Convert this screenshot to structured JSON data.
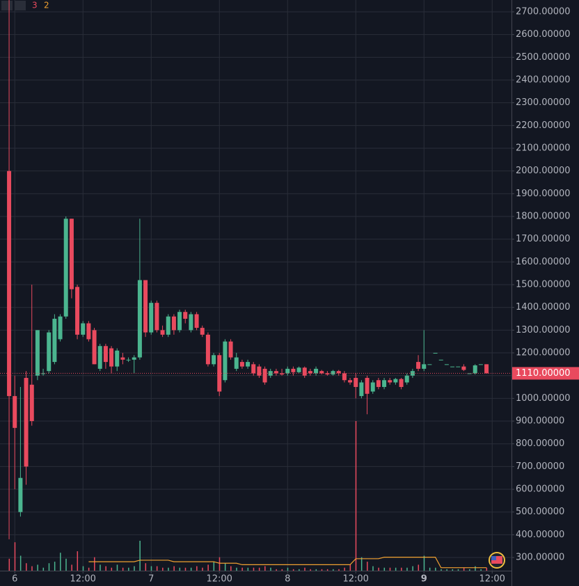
{
  "header": {
    "values": [
      "3",
      "2"
    ]
  },
  "chart_data": {
    "type": "candlestick",
    "up_color": "#4bb58f",
    "down_color": "#e94a5e",
    "xlim": [
      -2.6,
      87.4
    ],
    "xticks": [
      {
        "value": 0,
        "label": "6"
      },
      {
        "value": 12,
        "label": "12:00"
      },
      {
        "value": 24,
        "label": "7"
      },
      {
        "value": 36,
        "label": "12:00"
      },
      {
        "value": 48,
        "label": "8"
      },
      {
        "value": 60,
        "label": "12:00"
      },
      {
        "value": 72,
        "label": "9"
      },
      {
        "value": 84,
        "label": "12:00"
      }
    ],
    "ylim": [
      242,
      2752
    ],
    "yticks": [
      {
        "value": 300,
        "label": "300.00000"
      },
      {
        "value": 400,
        "label": "400.00000"
      },
      {
        "value": 500,
        "label": "500.00000"
      },
      {
        "value": 600,
        "label": "600.00000"
      },
      {
        "value": 700,
        "label": "700.00000"
      },
      {
        "value": 800,
        "label": "800.00000"
      },
      {
        "value": 900,
        "label": "900.00000"
      },
      {
        "value": 1000,
        "label": "1000.00000"
      },
      {
        "value": 1100,
        "label": "1100.00000"
      },
      {
        "value": 1200,
        "label": "1200.00000"
      },
      {
        "value": 1300,
        "label": "1300.00000"
      },
      {
        "value": 1400,
        "label": "1400.00000"
      },
      {
        "value": 1500,
        "label": "1500.00000"
      },
      {
        "value": 1600,
        "label": "1600.00000"
      },
      {
        "value": 1700,
        "label": "1700.00000"
      },
      {
        "value": 1800,
        "label": "1800.00000"
      },
      {
        "value": 1900,
        "label": "1900.00000"
      },
      {
        "value": 2000,
        "label": "2000.00000"
      },
      {
        "value": 2100,
        "label": "2100.00000"
      },
      {
        "value": 2200,
        "label": "2200.00000"
      },
      {
        "value": 2300,
        "label": "2300.00000"
      },
      {
        "value": 2400,
        "label": "2400.00000"
      },
      {
        "value": 2500,
        "label": "2500.00000"
      },
      {
        "value": 2600,
        "label": "2600.00000"
      },
      {
        "value": 2700,
        "label": "2700.00000"
      }
    ],
    "last_price": {
      "value": 1110,
      "label": "1110.00000"
    },
    "grid": true,
    "x": [
      -1,
      0,
      1,
      2,
      3,
      4,
      5,
      6,
      7,
      8,
      9,
      10,
      11,
      12,
      13,
      14,
      15,
      16,
      17,
      18,
      19,
      20,
      21,
      22,
      23,
      24,
      25,
      26,
      27,
      28,
      29,
      30,
      31,
      32,
      33,
      34,
      35,
      36,
      37,
      38,
      39,
      40,
      41,
      42,
      43,
      44,
      45,
      46,
      47,
      48,
      49,
      50,
      51,
      52,
      53,
      54,
      55,
      56,
      57,
      58,
      59,
      60,
      61,
      62,
      63,
      64,
      65,
      66,
      67,
      68,
      69,
      70,
      71,
      72,
      73,
      74,
      75,
      76,
      77,
      78,
      79,
      80,
      81,
      82,
      83
    ],
    "open": [
      2000,
      1010,
      500,
      1090,
      1060,
      1100,
      1110,
      1120,
      1160,
      1260,
      1360,
      1790,
      1490,
      1280,
      1330,
      1300,
      1130,
      1230,
      1220,
      1140,
      1180,
      1170,
      1170,
      1180,
      1520,
      1290,
      1420,
      1300,
      1280,
      1360,
      1300,
      1380,
      1300,
      1370,
      1310,
      1280,
      1150,
      1190,
      1080,
      1250,
      1130,
      1160,
      1140,
      1150,
      1140,
      1130,
      1100,
      1120,
      1110,
      1110,
      1130,
      1115,
      1135,
      1120,
      1110,
      1120,
      1110,
      1105,
      1120,
      1110,
      1080,
      1090,
      1010,
      1090,
      1030,
      1080,
      1050,
      1080,
      1070,
      1085,
      1070,
      1100,
      1160,
      1130,
      1150,
      1200,
      1170,
      1150,
      1140,
      1140,
      1140,
      1110,
      1110,
      1150,
      1150
    ],
    "high": [
      2760,
      1100,
      1050,
      1120,
      1500,
      1300,
      1130,
      1300,
      1370,
      1370,
      1800,
      1790,
      1500,
      1340,
      1340,
      1310,
      1240,
      1240,
      1230,
      1220,
      1200,
      1180,
      1190,
      1790,
      1520,
      1430,
      1430,
      1320,
      1370,
      1370,
      1390,
      1390,
      1380,
      1380,
      1320,
      1290,
      1200,
      1200,
      1260,
      1260,
      1200,
      1170,
      1170,
      1160,
      1150,
      1140,
      1130,
      1130,
      1130,
      1140,
      1140,
      1140,
      1140,
      1130,
      1140,
      1125,
      1120,
      1125,
      1125,
      1120,
      1090,
      1110,
      1080,
      1100,
      1080,
      1090,
      1090,
      1090,
      1090,
      1090,
      1110,
      1130,
      1190,
      1300,
      1150,
      1200,
      1170,
      1150,
      1140,
      1140,
      1150,
      1110,
      1150,
      1150,
      1150
    ],
    "low": [
      380,
      600,
      480,
      620,
      880,
      1080,
      1100,
      1110,
      1150,
      1250,
      1350,
      1440,
      1260,
      1270,
      1250,
      1150,
      1120,
      1130,
      1110,
      1120,
      1150,
      1160,
      1110,
      1170,
      1270,
      1280,
      1290,
      1270,
      1270,
      1280,
      1290,
      1330,
      1290,
      1300,
      1270,
      1140,
      1140,
      1010,
      1070,
      1170,
      1120,
      1130,
      1130,
      1100,
      1090,
      1060,
      1090,
      1100,
      1100,
      1100,
      1100,
      1110,
      1090,
      1100,
      1100,
      1105,
      1100,
      1100,
      1100,
      1070,
      1060,
      1000,
      1000,
      930,
      1020,
      1040,
      1040,
      1060,
      1060,
      1040,
      1060,
      1090,
      1120,
      1120,
      1150,
      1200,
      1170,
      1150,
      1140,
      1140,
      1120,
      1110,
      1105,
      1150,
      1110
    ],
    "close": [
      1010,
      870,
      650,
      700,
      900,
      1300,
      1110,
      1290,
      1350,
      1360,
      1790,
      1480,
      1280,
      1330,
      1260,
      1150,
      1230,
      1160,
      1140,
      1210,
      1170,
      1170,
      1180,
      1520,
      1290,
      1420,
      1300,
      1280,
      1360,
      1300,
      1380,
      1350,
      1370,
      1310,
      1280,
      1150,
      1190,
      1030,
      1250,
      1180,
      1180,
      1140,
      1160,
      1110,
      1100,
      1070,
      1120,
      1110,
      1105,
      1130,
      1115,
      1135,
      1100,
      1110,
      1130,
      1110,
      1105,
      1120,
      1110,
      1080,
      1070,
      1050,
      1070,
      1020,
      1070,
      1050,
      1080,
      1070,
      1085,
      1050,
      1100,
      1120,
      1130,
      1150,
      1150,
      1200,
      1170,
      1150,
      1140,
      1140,
      1125,
      1110,
      1145,
      1150,
      1110
    ],
    "volume_ylim": [
      0,
      100
    ],
    "volume": [
      8,
      19,
      10,
      5,
      3,
      4,
      2,
      5,
      6,
      12,
      8,
      4,
      13,
      3,
      2,
      9,
      4,
      3,
      2,
      4,
      2,
      2,
      3,
      20,
      5,
      3,
      3,
      2,
      2,
      3,
      2,
      2,
      2,
      3,
      2,
      4,
      6,
      9,
      5,
      3,
      2,
      2,
      2,
      2,
      2,
      3,
      2,
      1,
      1,
      2,
      1,
      1,
      2,
      1,
      1,
      1,
      1,
      1,
      1,
      2,
      4,
      100,
      9,
      6,
      3,
      2,
      2,
      2,
      2,
      2,
      2,
      3,
      4,
      10,
      2,
      2,
      1,
      1,
      1,
      1,
      2,
      1,
      3,
      1,
      2
    ],
    "volume_ma_color": "#f0a030",
    "volume_ma": [
      null,
      null,
      null,
      null,
      null,
      null,
      null,
      null,
      null,
      null,
      null,
      null,
      null,
      null,
      6,
      6,
      6,
      6,
      6,
      6,
      6,
      6,
      6,
      7,
      7,
      7,
      7,
      7,
      7,
      6,
      6,
      6,
      6,
      6,
      6,
      6,
      6,
      5,
      5,
      5,
      5,
      4,
      4,
      4,
      4,
      4,
      4,
      4,
      4,
      4,
      4,
      4,
      4,
      4,
      4,
      4,
      4,
      4,
      4,
      4,
      4,
      8,
      8,
      8,
      8,
      8,
      9,
      9,
      9,
      9,
      9,
      9,
      9,
      9,
      9,
      9,
      2,
      2,
      2,
      2,
      2,
      2,
      2,
      2,
      2
    ]
  }
}
